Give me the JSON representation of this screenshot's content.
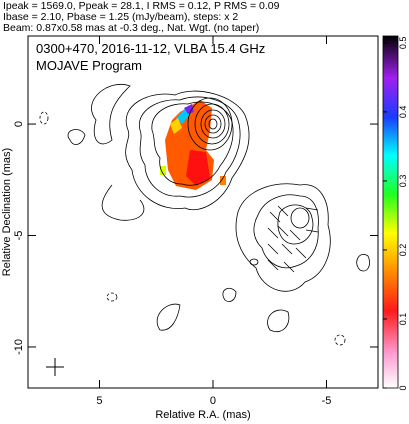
{
  "chart_data": {
    "type": "image",
    "header": [
      "Ipeak = 1569.0, Ppeak = 28.1, I RMS = 0.12, P RMS = 0.09",
      "Ibase = 2.10, Pbase = 1.25 (mJy/beam), steps: x 2",
      "Beam: 0.87x0.58 mas at -0.3 deg., Nat. Wgt. (no taper)"
    ],
    "title": "0300+470, 2016-11-12, VLBA 15.4 GHz",
    "subtitle": "MOJAVE Program",
    "xlabel": "Relative R.A. (mas)",
    "ylabel": "Relative Declination (mas)",
    "xlim": [
      8.15,
      -7.27
    ],
    "xticks": [
      5,
      0,
      -5
    ],
    "ylim": [
      -11.84,
      3.95
    ],
    "yticks": [
      0,
      -5,
      -10
    ],
    "colorbar_lim": [
      0,
      0.51
    ],
    "colorbar_ticks": [
      0,
      0.1,
      0.2,
      0.3,
      0.4,
      0.5
    ]
  }
}
